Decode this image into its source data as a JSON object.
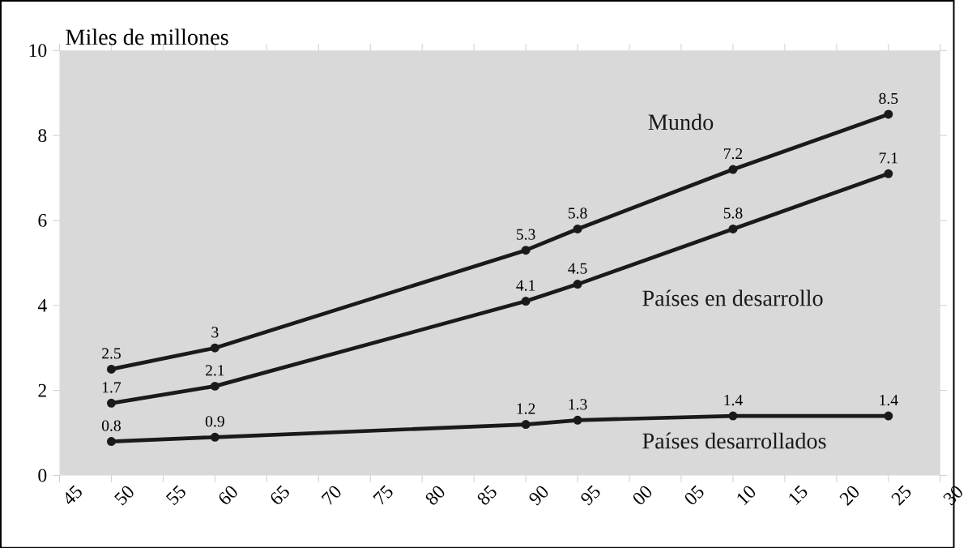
{
  "chart_data": {
    "type": "line",
    "ylabel": "Miles de millones",
    "x": [
      1950,
      1960,
      1990,
      1995,
      2010,
      2025
    ],
    "series": [
      {
        "name": "Mundo",
        "color": "#1a1a1a",
        "values": [
          2.5,
          3,
          5.3,
          5.8,
          7.2,
          8.5
        ]
      },
      {
        "name": "Países en desarrollo",
        "color": "#1a1a1a",
        "values": [
          1.7,
          2.1,
          4.1,
          4.5,
          5.8,
          7.1
        ]
      },
      {
        "name": "Países desarrollados",
        "color": "#1a1a1a",
        "values": [
          0.8,
          0.9,
          1.2,
          1.3,
          1.4,
          1.4
        ]
      }
    ],
    "xlim": [
      1945,
      2030
    ],
    "xticks": [
      {
        "value": 1945,
        "label": "45"
      },
      {
        "value": 1950,
        "label": "50"
      },
      {
        "value": 1955,
        "label": "55"
      },
      {
        "value": 1960,
        "label": "60"
      },
      {
        "value": 1965,
        "label": "65"
      },
      {
        "value": 1970,
        "label": "70"
      },
      {
        "value": 1975,
        "label": "75"
      },
      {
        "value": 1980,
        "label": "80"
      },
      {
        "value": 1985,
        "label": "85"
      },
      {
        "value": 1990,
        "label": "90"
      },
      {
        "value": 1995,
        "label": "95"
      },
      {
        "value": 2000,
        "label": "00"
      },
      {
        "value": 2005,
        "label": "05"
      },
      {
        "value": 2010,
        "label": "10"
      },
      {
        "value": 2015,
        "label": "15"
      },
      {
        "value": 2020,
        "label": "20"
      },
      {
        "value": 2025,
        "label": "25"
      },
      {
        "value": 2030,
        "label": "30"
      }
    ],
    "ylim": [
      0,
      10
    ],
    "yticks": [
      0,
      2,
      4,
      6,
      8,
      10
    ],
    "data_labels": true,
    "marker": "circle"
  }
}
